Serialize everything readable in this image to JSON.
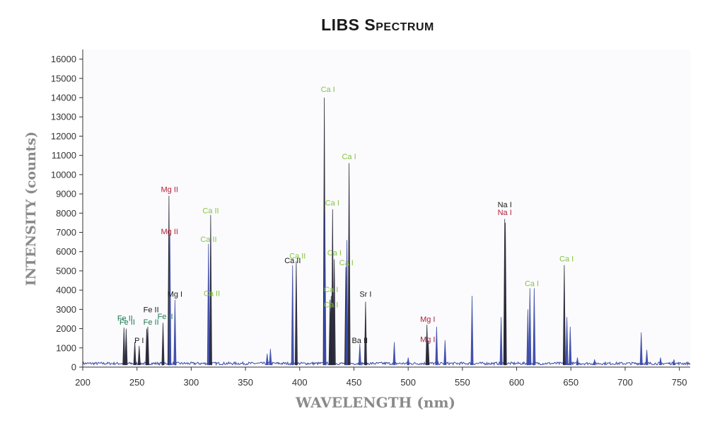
{
  "chart_data": {
    "type": "line",
    "title": "LIBS Spectrum",
    "xlabel": "WAVELENGTH (nm)",
    "ylabel": "INTENSITY (counts)",
    "xlim": [
      200,
      760
    ],
    "ylim": [
      0,
      16500
    ],
    "x_ticks": [
      200,
      250,
      300,
      350,
      400,
      450,
      500,
      550,
      600,
      650,
      700,
      750
    ],
    "y_ticks": [
      0,
      1000,
      2000,
      3000,
      4000,
      5000,
      6000,
      7000,
      8000,
      9000,
      10000,
      11000,
      12000,
      13000,
      14000,
      15000,
      16000
    ],
    "grid": false,
    "baseline": 120,
    "colors": {
      "spectrum": "#3a4aa8",
      "peak_dark": "#262636",
      "ca": "#86c440",
      "fe": "#1e7a52",
      "mg": "#b01f36",
      "black": "#1a1a1a"
    },
    "peaks": [
      {
        "x": 238,
        "y": 2050,
        "shade": "dark"
      },
      {
        "x": 240,
        "y": 2000,
        "shade": "dark"
      },
      {
        "x": 248,
        "y": 1300,
        "shade": "dark"
      },
      {
        "x": 252,
        "y": 1100,
        "shade": "dark"
      },
      {
        "x": 259,
        "y": 2000,
        "shade": "dark"
      },
      {
        "x": 260,
        "y": 2100,
        "shade": "dark"
      },
      {
        "x": 274,
        "y": 2300,
        "shade": "dark"
      },
      {
        "x": 279.5,
        "y": 8900,
        "shade": "dark"
      },
      {
        "x": 280.3,
        "y": 6900,
        "shade": "blue"
      },
      {
        "x": 285,
        "y": 3500,
        "shade": "blue"
      },
      {
        "x": 315.9,
        "y": 6400,
        "shade": "blue"
      },
      {
        "x": 317.9,
        "y": 7900,
        "shade": "dark"
      },
      {
        "x": 370,
        "y": 700,
        "shade": "blue"
      },
      {
        "x": 373,
        "y": 950,
        "shade": "blue"
      },
      {
        "x": 393.4,
        "y": 5300,
        "shade": "blue"
      },
      {
        "x": 396.8,
        "y": 5500,
        "shade": "dark"
      },
      {
        "x": 422.7,
        "y": 14000,
        "shade": "dark"
      },
      {
        "x": 423.2,
        "y": 8000,
        "shade": "blue"
      },
      {
        "x": 428,
        "y": 3500,
        "shade": "dark"
      },
      {
        "x": 429,
        "y": 3700,
        "shade": "dark"
      },
      {
        "x": 430.3,
        "y": 8200,
        "shade": "dark"
      },
      {
        "x": 431.9,
        "y": 5600,
        "shade": "dark"
      },
      {
        "x": 442.5,
        "y": 5200,
        "shade": "dark"
      },
      {
        "x": 443.5,
        "y": 6600,
        "shade": "blue"
      },
      {
        "x": 445.5,
        "y": 10600,
        "shade": "dark"
      },
      {
        "x": 455.4,
        "y": 1200,
        "shade": "blue"
      },
      {
        "x": 460.7,
        "y": 3400,
        "shade": "dark"
      },
      {
        "x": 487.2,
        "y": 1300,
        "shade": "blue"
      },
      {
        "x": 500,
        "y": 500,
        "shade": "blue"
      },
      {
        "x": 517.3,
        "y": 2200,
        "shade": "dark"
      },
      {
        "x": 518.4,
        "y": 1400,
        "shade": "dark"
      },
      {
        "x": 526.2,
        "y": 2100,
        "shade": "blue"
      },
      {
        "x": 534,
        "y": 1400,
        "shade": "blue"
      },
      {
        "x": 558.9,
        "y": 3700,
        "shade": "blue"
      },
      {
        "x": 585.7,
        "y": 2600,
        "shade": "blue"
      },
      {
        "x": 589,
        "y": 7700,
        "shade": "dark"
      },
      {
        "x": 589.6,
        "y": 7500,
        "shade": "dark"
      },
      {
        "x": 610.3,
        "y": 3000,
        "shade": "blue"
      },
      {
        "x": 612.2,
        "y": 4100,
        "shade": "blue"
      },
      {
        "x": 616.2,
        "y": 4100,
        "shade": "blue"
      },
      {
        "x": 643.9,
        "y": 5300,
        "shade": "dark"
      },
      {
        "x": 646.3,
        "y": 2600,
        "shade": "blue"
      },
      {
        "x": 649.4,
        "y": 2100,
        "shade": "blue"
      },
      {
        "x": 656,
        "y": 500,
        "shade": "blue"
      },
      {
        "x": 671.8,
        "y": 400,
        "shade": "blue"
      },
      {
        "x": 714.8,
        "y": 1800,
        "shade": "blue"
      },
      {
        "x": 720,
        "y": 900,
        "shade": "blue"
      },
      {
        "x": 732.6,
        "y": 500,
        "shade": "blue"
      },
      {
        "x": 745,
        "y": 400,
        "shade": "blue"
      }
    ],
    "annotations": [
      {
        "text": "Ca I",
        "x": 426,
        "y": 14300,
        "color": "ca"
      },
      {
        "text": "Ca I",
        "x": 445.5,
        "y": 10800,
        "color": "ca"
      },
      {
        "text": "Ca I",
        "x": 430,
        "y": 8400,
        "color": "ca"
      },
      {
        "text": "Ca I",
        "x": 432,
        "y": 5800,
        "color": "ca"
      },
      {
        "text": "Ca I",
        "x": 443,
        "y": 5300,
        "color": "ca"
      },
      {
        "text": "Ca I",
        "x": 429,
        "y": 3900,
        "color": "ca"
      },
      {
        "text": "Ca I",
        "x": 429,
        "y": 3100,
        "color": "ca"
      },
      {
        "text": "Ca II",
        "x": 318,
        "y": 8000,
        "color": "ca"
      },
      {
        "text": "Ca II",
        "x": 316,
        "y": 6500,
        "color": "ca"
      },
      {
        "text": "Ca II",
        "x": 319,
        "y": 3700,
        "color": "ca"
      },
      {
        "text": "Ca II",
        "x": 398,
        "y": 5650,
        "color": "ca"
      },
      {
        "text": "Ca II",
        "x": 393.5,
        "y": 5400,
        "color": "black"
      },
      {
        "text": "Ca I",
        "x": 614,
        "y": 4200,
        "color": "ca"
      },
      {
        "text": "Ca I",
        "x": 646,
        "y": 5500,
        "color": "ca"
      },
      {
        "text": "Mg II",
        "x": 280,
        "y": 9100,
        "color": "mg"
      },
      {
        "text": "Mg II",
        "x": 280,
        "y": 6900,
        "color": "mg"
      },
      {
        "text": "Mg I",
        "x": 285,
        "y": 3650,
        "color": "black"
      },
      {
        "text": "Mg I",
        "x": 518,
        "y": 2350,
        "color": "mg"
      },
      {
        "text": "Mg I",
        "x": 518,
        "y": 1300,
        "color": "mg"
      },
      {
        "text": "Na I",
        "x": 589,
        "y": 8300,
        "color": "black"
      },
      {
        "text": "Na I",
        "x": 589,
        "y": 7900,
        "color": "mg"
      },
      {
        "text": "Fe II",
        "x": 239,
        "y": 2400,
        "color": "fe"
      },
      {
        "text": "Fe II",
        "x": 241,
        "y": 2200,
        "color": "fe"
      },
      {
        "text": "Fe II",
        "x": 263,
        "y": 2850,
        "color": "black"
      },
      {
        "text": "Fe II",
        "x": 263,
        "y": 2200,
        "color": "fe"
      },
      {
        "text": "Fe II",
        "x": 276,
        "y": 2500,
        "color": "fe"
      },
      {
        "text": "P I",
        "x": 252,
        "y": 1250,
        "color": "black"
      },
      {
        "text": "Sr I",
        "x": 460.7,
        "y": 3650,
        "color": "black"
      },
      {
        "text": "Ba II",
        "x": 455.4,
        "y": 1250,
        "color": "black"
      }
    ]
  }
}
